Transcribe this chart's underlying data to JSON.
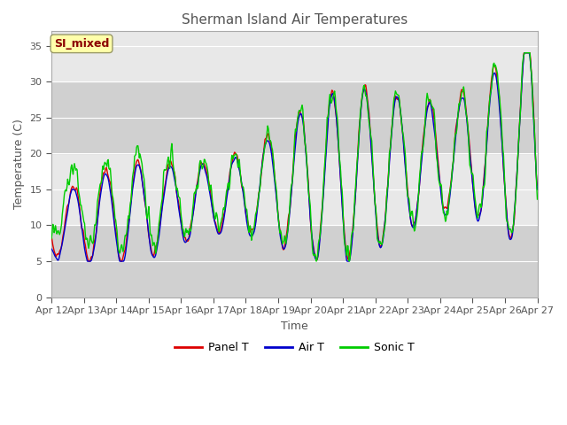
{
  "title": "Sherman Island Air Temperatures",
  "xlabel": "Time",
  "ylabel": "Temperature (C)",
  "ylim": [
    0,
    37
  ],
  "yticks": [
    0,
    5,
    10,
    15,
    20,
    25,
    30,
    35
  ],
  "legend_labels": [
    "Panel T",
    "Air T",
    "Sonic T"
  ],
  "legend_colors": [
    "#dd0000",
    "#0000cc",
    "#00cc00"
  ],
  "annotation_text": "SI_mixed",
  "annotation_color": "#8b0000",
  "annotation_bg": "#ffffaa",
  "xtick_labels": [
    "Apr 12",
    "Apr 13",
    "Apr 14",
    "Apr 15",
    "Apr 16",
    "Apr 17",
    "Apr 18",
    "Apr 19",
    "Apr 20",
    "Apr 21",
    "Apr 22",
    "Apr 23",
    "Apr 24",
    "Apr 25",
    "Apr 26",
    "Apr 27"
  ],
  "n_days": 15,
  "pts_per_day": 48,
  "band_light": "#e8e8e8",
  "band_dark": "#d0d0d0",
  "bg_color": "#c8c8c8"
}
